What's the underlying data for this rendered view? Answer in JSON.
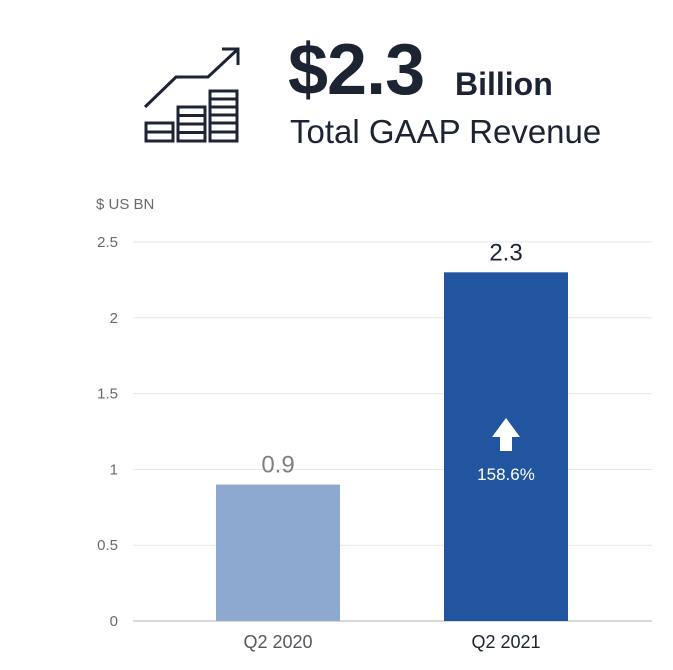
{
  "header": {
    "icon": "growth-chart-icon",
    "amount": "$2.3",
    "unit": "Billion",
    "subtitle": "Total GAAP Revenue"
  },
  "colors": {
    "text_dark": "#1c2434",
    "bar_prior": "#8ea9cf",
    "bar_current": "#2255a0",
    "gridline": "#e6e6e6",
    "axis": "#cccccc"
  },
  "chart_data": {
    "type": "bar",
    "title": "Total GAAP Revenue",
    "ylabel": "$ US BN",
    "xlabel": "",
    "categories": [
      "Q2 2020",
      "Q2 2021"
    ],
    "values": [
      0.9,
      2.3
    ],
    "data_labels": [
      "0.9",
      "2.3"
    ],
    "ylim": [
      0,
      2.5
    ],
    "yticks": [
      0,
      0.5,
      1,
      1.5,
      2,
      2.5
    ],
    "ytick_labels": [
      "0",
      "0.5",
      "1",
      "1.5",
      "2",
      "2.5"
    ],
    "grid": true,
    "annotation": {
      "category": "Q2 2021",
      "icon": "arrow-up-icon",
      "text": "158.6%"
    }
  }
}
